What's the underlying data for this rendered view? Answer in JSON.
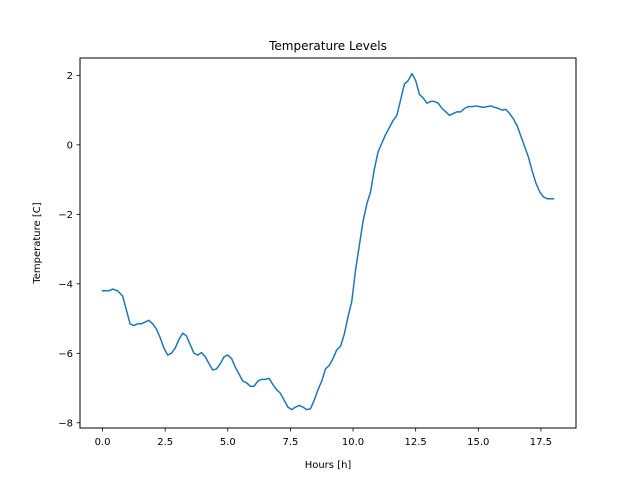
{
  "chart_data": {
    "type": "line",
    "title": "Temperature Levels",
    "xlabel": "Hours [h]",
    "ylabel": "Temperature [C]",
    "xlim": [
      -0.9,
      18.9
    ],
    "ylim": [
      -8.15,
      2.5
    ],
    "xticks": [
      0.0,
      2.5,
      5.0,
      7.5,
      10.0,
      12.5,
      15.0,
      17.5
    ],
    "xtick_labels": [
      "0.0",
      "2.5",
      "5.0",
      "7.5",
      "10.0",
      "12.5",
      "15.0",
      "17.5"
    ],
    "yticks": [
      2,
      0,
      -2,
      -4,
      -6,
      -8
    ],
    "ytick_labels": [
      "2",
      "0",
      "−2",
      "−4",
      "−6",
      "−8"
    ],
    "grid": false,
    "line_color": "#1f77b4",
    "series": [
      {
        "x": [
          0.0,
          0.25,
          0.4,
          0.6,
          0.8,
          0.95,
          1.1,
          1.25,
          1.4,
          1.55,
          1.7,
          1.85,
          2.0,
          2.15,
          2.3,
          2.45,
          2.6,
          2.75,
          2.9,
          3.05,
          3.2,
          3.35,
          3.5,
          3.65,
          3.8,
          3.95,
          4.1,
          4.25,
          4.4,
          4.55,
          4.7,
          4.85,
          5.0,
          5.15,
          5.3,
          5.45,
          5.6,
          5.75,
          5.9,
          6.05,
          6.2,
          6.35,
          6.5,
          6.65,
          6.8,
          6.95,
          7.1,
          7.25,
          7.4,
          7.55,
          7.7,
          7.85,
          8.0,
          8.15,
          8.3,
          8.45,
          8.6,
          8.75,
          8.9,
          9.05,
          9.2,
          9.35,
          9.5,
          9.65,
          9.8,
          9.95,
          10.1,
          10.25,
          10.4,
          10.55,
          10.7,
          10.85,
          11.0,
          11.15,
          11.3,
          11.45,
          11.6,
          11.75,
          11.9,
          12.05,
          12.2,
          12.35,
          12.5,
          12.65,
          12.8,
          12.95,
          13.1,
          13.25,
          13.4,
          13.55,
          13.7,
          13.85,
          14.0,
          14.15,
          14.3,
          14.45,
          14.6,
          14.75,
          14.9,
          15.05,
          15.2,
          15.35,
          15.5,
          15.65,
          15.8,
          15.95,
          16.1,
          16.25,
          16.4,
          16.55,
          16.7,
          16.85,
          17.0,
          17.15,
          17.3,
          17.45,
          17.6,
          17.75,
          17.9,
          18.0
        ],
        "y": [
          -4.2,
          -4.2,
          -4.15,
          -4.2,
          -4.35,
          -4.75,
          -5.15,
          -5.2,
          -5.15,
          -5.15,
          -5.1,
          -5.05,
          -5.15,
          -5.3,
          -5.55,
          -5.85,
          -6.05,
          -6.0,
          -5.85,
          -5.6,
          -5.42,
          -5.5,
          -5.75,
          -6.0,
          -6.05,
          -5.98,
          -6.1,
          -6.3,
          -6.48,
          -6.45,
          -6.3,
          -6.1,
          -6.05,
          -6.15,
          -6.4,
          -6.6,
          -6.8,
          -6.85,
          -6.95,
          -6.95,
          -6.8,
          -6.75,
          -6.75,
          -6.72,
          -6.9,
          -7.05,
          -7.15,
          -7.35,
          -7.55,
          -7.62,
          -7.55,
          -7.5,
          -7.55,
          -7.62,
          -7.6,
          -7.35,
          -7.05,
          -6.8,
          -6.45,
          -6.35,
          -6.15,
          -5.9,
          -5.8,
          -5.45,
          -4.95,
          -4.5,
          -3.6,
          -2.9,
          -2.2,
          -1.7,
          -1.35,
          -0.7,
          -0.2,
          0.05,
          0.3,
          0.5,
          0.7,
          0.85,
          1.3,
          1.75,
          1.85,
          2.05,
          1.85,
          1.45,
          1.35,
          1.2,
          1.25,
          1.25,
          1.2,
          1.05,
          0.95,
          0.85,
          0.9,
          0.95,
          0.95,
          1.05,
          1.1,
          1.1,
          1.12,
          1.1,
          1.08,
          1.1,
          1.12,
          1.08,
          1.05,
          1.0,
          1.02,
          0.9,
          0.75,
          0.55,
          0.25,
          -0.05,
          -0.35,
          -0.75,
          -1.1,
          -1.35,
          -1.5,
          -1.55,
          -1.55,
          -1.55
        ]
      }
    ]
  }
}
